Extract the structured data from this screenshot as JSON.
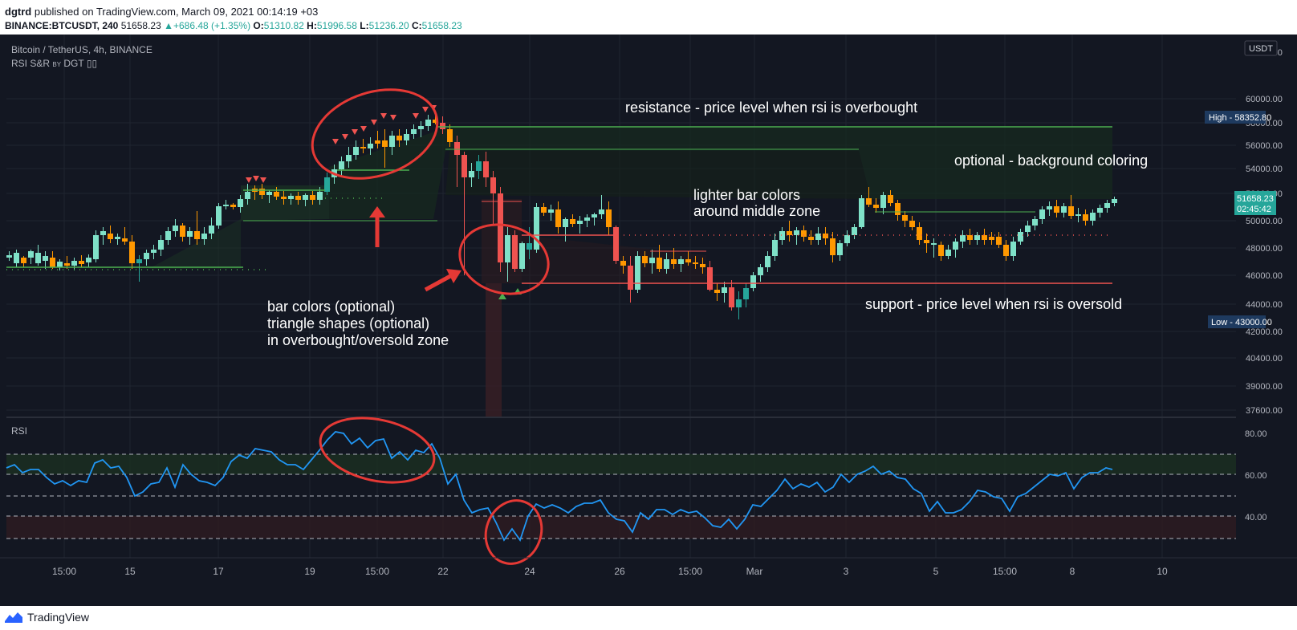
{
  "header": {
    "author": "dgtrd",
    "published": "published on TradingView.com, March 09, 2021 00:14:19 +03",
    "symbol": "BINANCE:BTCUSDT, 240",
    "last": "51658.23",
    "change": "+686.48 (+1.35%)",
    "o_label": "O:",
    "o": "51310.82",
    "h_label": "H:",
    "h": "51996.58",
    "l_label": "L:",
    "l": "51236.20",
    "c_label": "C:",
    "c": "51658.23"
  },
  "legend": {
    "title": "Bitcoin / TetherUS, 4h, BINANCE",
    "indicator": "RSI S&R",
    "by": "BY",
    "author": "DGT",
    "rsi_label": "RSI"
  },
  "currency": "USDT",
  "price_axis": [
    "64000.00",
    "60000.00",
    "58000.00",
    "56000.00",
    "54000.00",
    "52000.00",
    "50000.00",
    "48000.00",
    "46000.00",
    "44000.00",
    "42000.00",
    "40400.00",
    "39000.00",
    "37600.00"
  ],
  "rsi_axis": [
    "80.00",
    "60.00",
    "40.00"
  ],
  "high_tag": {
    "label": "High",
    "value": "58352.80"
  },
  "low_tag": {
    "label": "Low",
    "value": "43000.00"
  },
  "last_tag": {
    "value": "51658.23",
    "countdown": "02:45:42"
  },
  "time_axis": [
    "15:00",
    "15",
    "17",
    "19",
    "15:00",
    "22",
    "24",
    "26",
    "15:00",
    "Mar",
    "3",
    "5",
    "15:00",
    "8",
    "10"
  ],
  "annotations": {
    "resistance": "resistance - price level when rsi is overbought",
    "background": "optional - background coloring",
    "lighter1": "lighter bar colors",
    "lighter2": "around middle zone",
    "support": "support - price level when rsi is oversold",
    "bar1": "bar colors (optional)",
    "bar2": "triangle shapes (optional)",
    "bar3": "in overbought/oversold zone"
  },
  "footer": {
    "brand": "TradingView"
  },
  "colors": {
    "bg": "#131722",
    "up": "#26a69a",
    "down": "#ef5350",
    "light_up": "#7fe1c8",
    "orange": "#ff9800",
    "rsi": "#2196f3",
    "green_line": "#4caf50",
    "red_line": "#ef5350",
    "annot": "#e53935"
  }
}
